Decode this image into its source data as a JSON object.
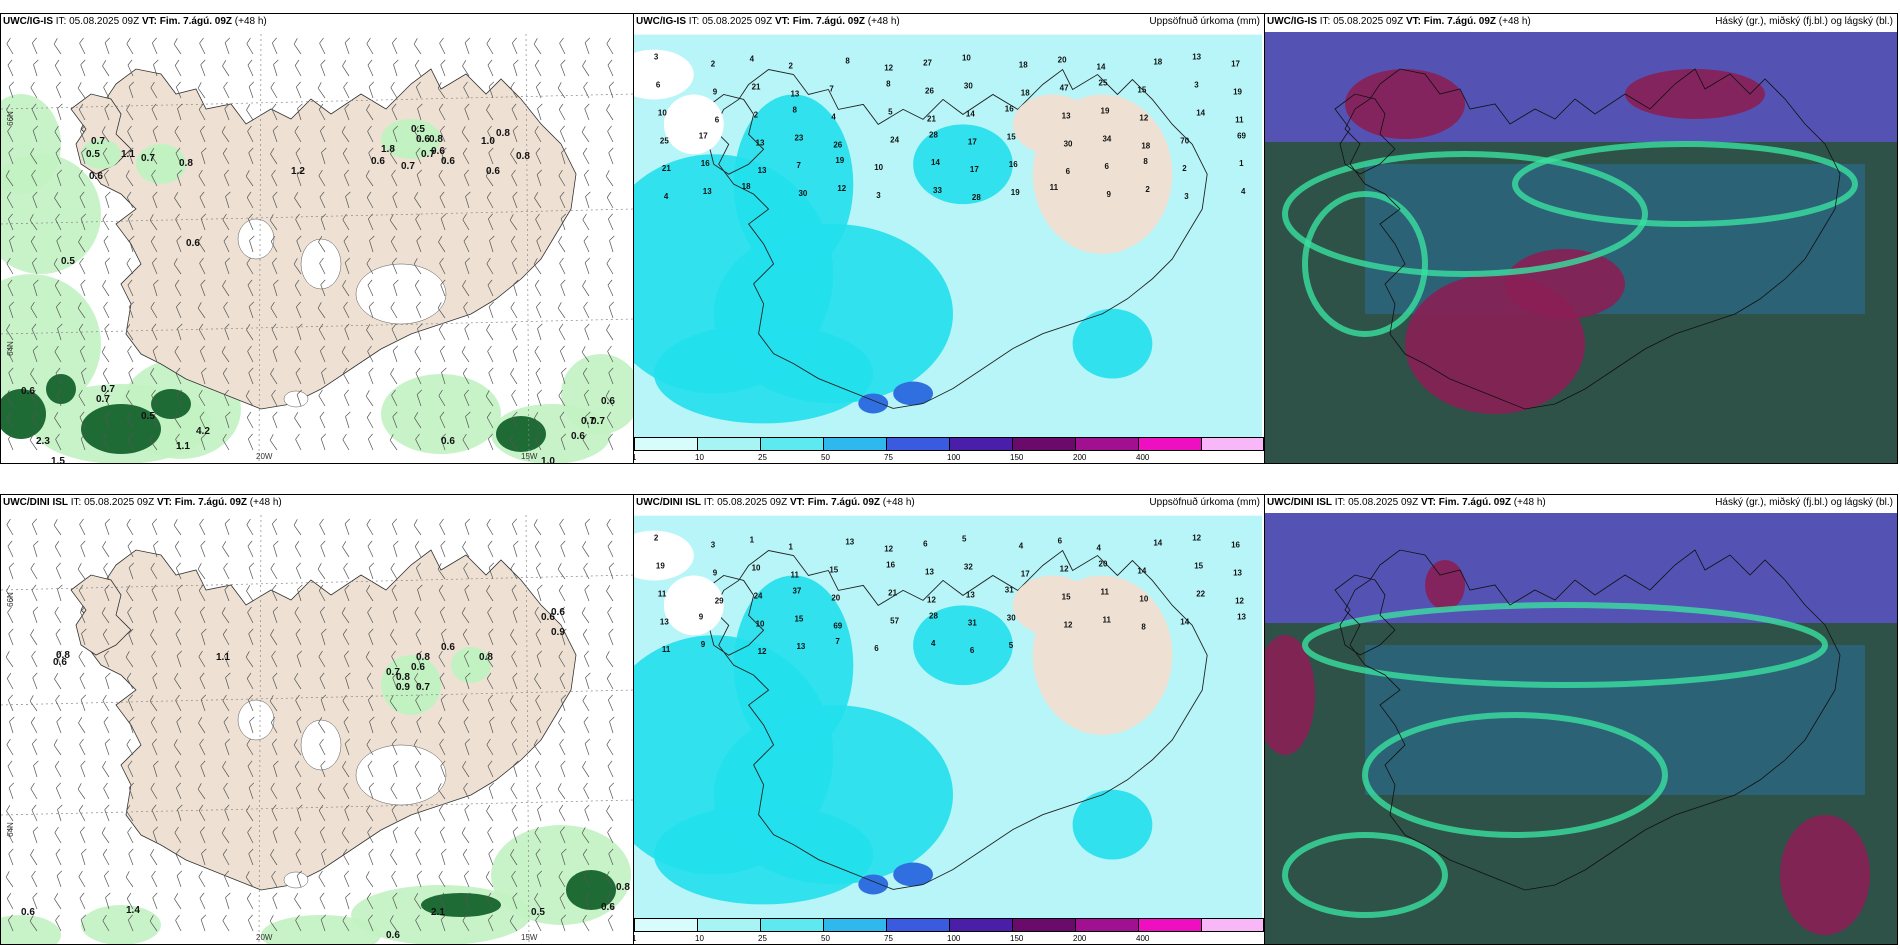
{
  "panels": [
    {
      "model": "UWC/IG-IS",
      "it": "IT: 05.08.2025 09Z",
      "vt_label": "VT:",
      "vt_value": "Fim. 7.ágú. 09Z",
      "lead": "(+48 h)",
      "right": ""
    },
    {
      "model": "UWC/IG-IS",
      "it": "IT: 05.08.2025 09Z",
      "vt_label": "VT:",
      "vt_value": "Fim. 7.ágú. 09Z",
      "lead": "(+48 h)",
      "right": "Uppsöfnuð úrkoma (mm)"
    },
    {
      "model": "UWC/IG-IS",
      "it": "IT: 05.08.2025 09Z",
      "vt_label": "VT:",
      "vt_value": "Fim. 7.ágú. 09Z",
      "lead": "(+48 h)",
      "right": "Háský (gr.), miðský (fj.bl.) og lágský (bl.)"
    },
    {
      "model": "UWC/DINI ISL",
      "it": "IT: 05.08.2025 09Z",
      "vt_label": "VT:",
      "vt_value": "Fim. 7.ágú. 09Z",
      "lead": "(+48 h)",
      "right": ""
    },
    {
      "model": "UWC/DINI ISL",
      "it": "IT: 05.08.2025 09Z",
      "vt_label": "VT:",
      "vt_value": "Fim. 7.ágú. 09Z",
      "lead": "(+48 h)",
      "right": "Uppsöfnuð úrkoma (mm)"
    },
    {
      "model": "UWC/DINI ISL",
      "it": "IT: 05.08.2025 09Z",
      "vt_label": "VT:",
      "vt_value": "Fim. 7.ágú. 09Z",
      "lead": "(+48 h)",
      "right": "Háský (gr.), miðský (fj.bl.) og lágský (bl.)"
    }
  ],
  "axis_labels": {
    "lat66": "66N",
    "lat64": "64N",
    "lon20": "20W",
    "lon15": "15W",
    "lat63": "63N"
  },
  "colorbar": {
    "ticks": [
      "1",
      "10",
      "25",
      "50",
      "75",
      "100",
      "150",
      "200",
      "400"
    ],
    "colors": [
      "#d8fbfb",
      "#a8f3f3",
      "#5ee8f0",
      "#2fb8ee",
      "#3a5be0",
      "#4a1ea8",
      "#6a0a6a",
      "#a01090",
      "#ee10c0",
      "#f8b8f8"
    ]
  },
  "colors": {
    "land": "#eee1d3",
    "sea": "#ffffff",
    "precip_light": "#b8f5f8",
    "precip_mid": "#22e0ec",
    "green_light": "#c2f2c2",
    "green_dark": "#1f6b35"
  },
  "values": {
    "wind_top": [
      "0.7",
      "0.5",
      "1.1",
      "0.7",
      "0.6",
      "0.8",
      "0.5",
      "0.6",
      "0.8",
      "0.6",
      "0.6",
      "1.8",
      "0.7",
      "0.6",
      "1.0",
      "0.8",
      "0.8",
      "0.7",
      "1.2",
      "0.6",
      "0.6",
      "0.5",
      "0.7",
      "0.7",
      "0.5",
      "1.1",
      "4.2",
      "0.6",
      "2.3",
      "0.6",
      "0.7",
      "0.6",
      "1.0",
      "0.7",
      "1.5",
      "0.6"
    ],
    "wind_bottom": [
      "0.8",
      "0.6",
      "1.1",
      "0.6",
      "0.6",
      "0.7",
      "0.9",
      "0.7",
      "0.8",
      "0.6",
      "0.6",
      "0.8",
      "0.8",
      "0.9",
      "0.6",
      "1.4",
      "2.1",
      "0.5",
      "0.6",
      "0.8",
      "0.6"
    ],
    "precip_top": [
      "3",
      "2",
      "4",
      "2",
      "8",
      "12",
      "27",
      "10",
      "18",
      "20",
      "14",
      "18",
      "13",
      "17",
      "6",
      "9",
      "21",
      "13",
      "7",
      "8",
      "26",
      "30",
      "18",
      "47",
      "25",
      "15",
      "3",
      "19",
      "10",
      "6",
      "2",
      "8",
      "4",
      "5",
      "21",
      "14",
      "16",
      "13",
      "19",
      "12",
      "14",
      "11",
      "25",
      "17",
      "13",
      "23",
      "26",
      "24",
      "28",
      "17",
      "15",
      "30",
      "34",
      "18",
      "70",
      "69",
      "21",
      "16",
      "13",
      "7",
      "19",
      "10",
      "14",
      "17",
      "16",
      "6",
      "6",
      "8",
      "2",
      "1",
      "4",
      "13",
      "18",
      "30",
      "12",
      "3",
      "33",
      "28",
      "19",
      "11",
      "9",
      "2",
      "3",
      "4"
    ],
    "precip_bottom": [
      "2",
      "3",
      "1",
      "1",
      "13",
      "12",
      "6",
      "5",
      "4",
      "6",
      "4",
      "14",
      "12",
      "16",
      "19",
      "9",
      "10",
      "11",
      "15",
      "16",
      "13",
      "32",
      "17",
      "12",
      "20",
      "14",
      "15",
      "13",
      "11",
      "29",
      "24",
      "37",
      "20",
      "21",
      "12",
      "13",
      "31",
      "15",
      "11",
      "10",
      "22",
      "12",
      "13",
      "9",
      "10",
      "15",
      "69",
      "57",
      "28",
      "31",
      "30",
      "12",
      "11",
      "8",
      "14",
      "13",
      "11",
      "9",
      "12",
      "13",
      "7",
      "6",
      "4",
      "6",
      "5"
    ]
  }
}
